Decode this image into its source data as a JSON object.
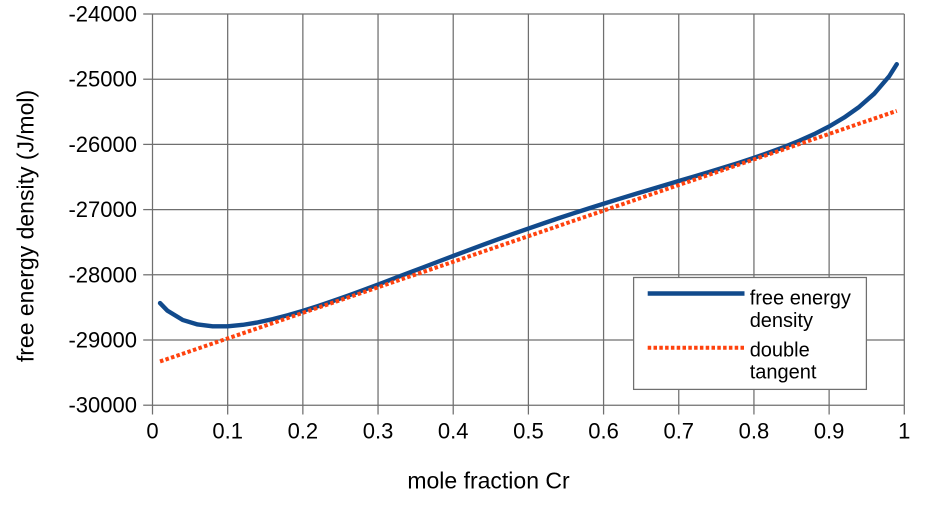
{
  "chart_data": {
    "type": "line",
    "title": "",
    "xlabel": "mole fraction Cr",
    "ylabel": "free energy density (J/mol)",
    "x_axis": {
      "min": 0,
      "max": 1,
      "tick_step": 0.1,
      "tick_values": [
        0,
        0.1,
        0.2,
        0.3,
        0.4,
        0.5,
        0.6,
        0.7,
        0.8,
        0.9,
        1
      ],
      "tick_labels": [
        "0",
        "0.1",
        "0.2",
        "0.3",
        "0.4",
        "0.5",
        "0.6",
        "0.7",
        "0.8",
        "0.9",
        "1"
      ]
    },
    "y_axis": {
      "min": -30000,
      "max": -24000,
      "tick_step": 1000,
      "tick_values": [
        -24000,
        -25000,
        -26000,
        -27000,
        -28000,
        -29000,
        -30000
      ],
      "tick_labels": [
        "-24000",
        "-25000",
        "-26000",
        "-27000",
        "-28000",
        "-29000",
        "-30000"
      ]
    },
    "grid": true,
    "grid_color": "#6f6f6f",
    "axis_color": "#6f6f6f",
    "text_color": "#000000",
    "background_color": "#ffffff",
    "series": [
      {
        "name": "free energy density",
        "color": "#114a8c",
        "line_style": "solid",
        "line_width": 4.4,
        "x": [
          0.01,
          0.02,
          0.04,
          0.06,
          0.08,
          0.1,
          0.12,
          0.14,
          0.16,
          0.18,
          0.2,
          0.22,
          0.24,
          0.26,
          0.28,
          0.3,
          0.32,
          0.34,
          0.36,
          0.38,
          0.4,
          0.42,
          0.44,
          0.46,
          0.48,
          0.5,
          0.52,
          0.54,
          0.56,
          0.58,
          0.6,
          0.62,
          0.64,
          0.66,
          0.68,
          0.7,
          0.72,
          0.74,
          0.76,
          0.78,
          0.8,
          0.82,
          0.84,
          0.86,
          0.88,
          0.9,
          0.92,
          0.94,
          0.96,
          0.98,
          0.99
        ],
        "y": [
          -28434,
          -28552,
          -28692,
          -28762,
          -28790,
          -28790,
          -28768,
          -28730,
          -28680,
          -28621,
          -28553,
          -28480,
          -28402,
          -28320,
          -28236,
          -28150,
          -28062,
          -27974,
          -27886,
          -27798,
          -27711,
          -27624,
          -27539,
          -27454,
          -27372,
          -27291,
          -27211,
          -27133,
          -27057,
          -26983,
          -26910,
          -26838,
          -26768,
          -26699,
          -26630,
          -26562,
          -26494,
          -26425,
          -26354,
          -26282,
          -26206,
          -26126,
          -26041,
          -25947,
          -25843,
          -25725,
          -25588,
          -25425,
          -25222,
          -24953,
          -24770
        ]
      },
      {
        "name": "double tangent",
        "color": "#ff420e",
        "line_style": "dotted",
        "line_width": 4,
        "x": [
          0.01,
          0.99
        ],
        "y": [
          -29329,
          -25486
        ]
      }
    ],
    "legend": {
      "position": "inside-right",
      "border_color": "#6f6f6f",
      "fill_color": "#ffffff",
      "entries": [
        {
          "series": "free energy density",
          "label_lines": [
            "free energy",
            "density"
          ]
        },
        {
          "series": "double tangent",
          "label_lines": [
            "double",
            "tangent"
          ]
        }
      ]
    }
  }
}
